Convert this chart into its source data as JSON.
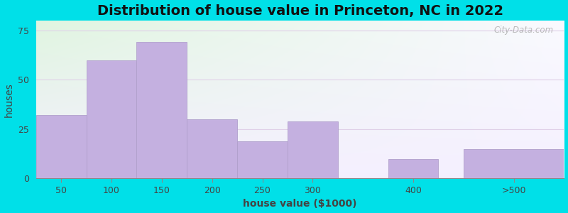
{
  "title": "Distribution of house value in Princeton, NC in 2022",
  "xlabel": "house value ($1000)",
  "ylabel": "houses",
  "tick_labels": [
    "50",
    "100",
    "150",
    "200",
    "250",
    "300",
    "400",
    ">500"
  ],
  "bar_lefts": [
    25,
    75,
    125,
    175,
    225,
    275,
    375,
    450
  ],
  "bar_widths": [
    50,
    50,
    50,
    50,
    50,
    50,
    50,
    100
  ],
  "bar_values": [
    32,
    60,
    69,
    30,
    19,
    29,
    10,
    15
  ],
  "tick_positions": [
    50,
    100,
    150,
    200,
    250,
    300,
    400,
    500
  ],
  "xlim": [
    25,
    550
  ],
  "bar_color": "#c4b0e0",
  "bar_edge_color": "#b0a0cc",
  "ylim": [
    0,
    80
  ],
  "yticks": [
    0,
    25,
    50,
    75
  ],
  "background_outer": "#00e0e8",
  "grid_color": "#e0d0e8",
  "title_fontsize": 14,
  "axis_label_fontsize": 10,
  "tick_fontsize": 9,
  "watermark_text": "City-Data.com"
}
